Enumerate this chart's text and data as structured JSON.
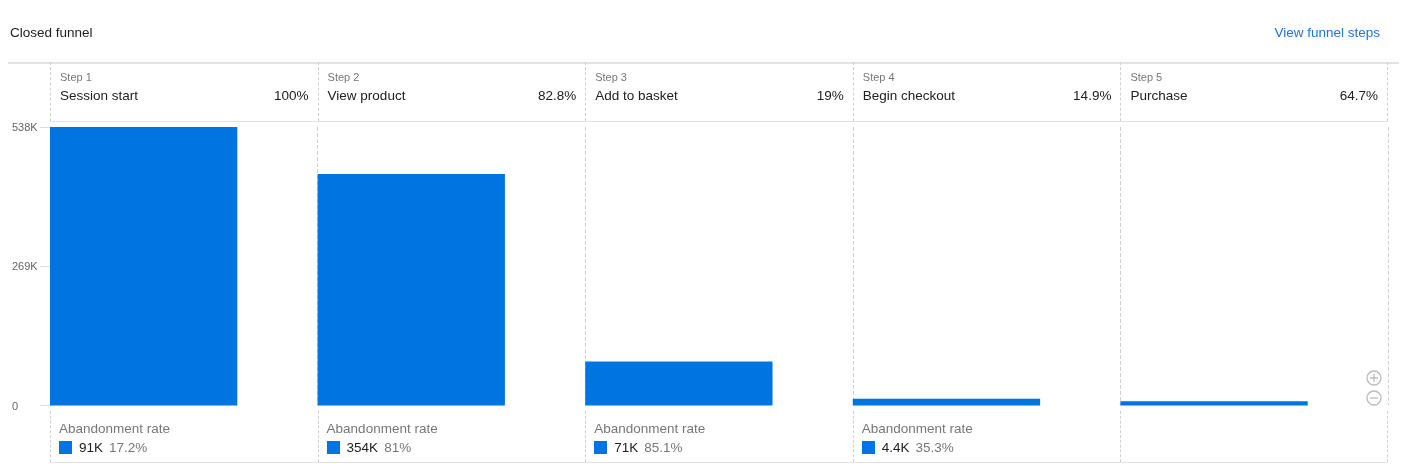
{
  "chart_data": {
    "type": "bar",
    "title": "Closed funnel",
    "categories": [
      "Session start",
      "View product",
      "Add to basket",
      "Begin checkout",
      "Purchase"
    ],
    "values": [
      538,
      447,
      85,
      13,
      8
    ],
    "color": "#0074e0",
    "ylim": [
      0,
      538
    ],
    "yticks": [
      {
        "value": 0,
        "label": "0"
      },
      {
        "value": 269,
        "label": "269K"
      },
      {
        "value": 538,
        "label": "538K"
      }
    ],
    "grid": "x",
    "annotations": [
      "View funnel steps",
      "Step 1",
      "100%",
      "Abandonment rate",
      "91K",
      "17.2%",
      "Step 2",
      "82.8%",
      "Abandonment rate",
      "354K",
      "81%",
      "Step 3",
      "19%",
      "Abandonment rate",
      "71K",
      "85.1%",
      "Step 4",
      "14.9%",
      "Abandonment rate",
      "4.4K",
      "35.3%",
      "Step 5",
      "64.7%"
    ]
  }
}
